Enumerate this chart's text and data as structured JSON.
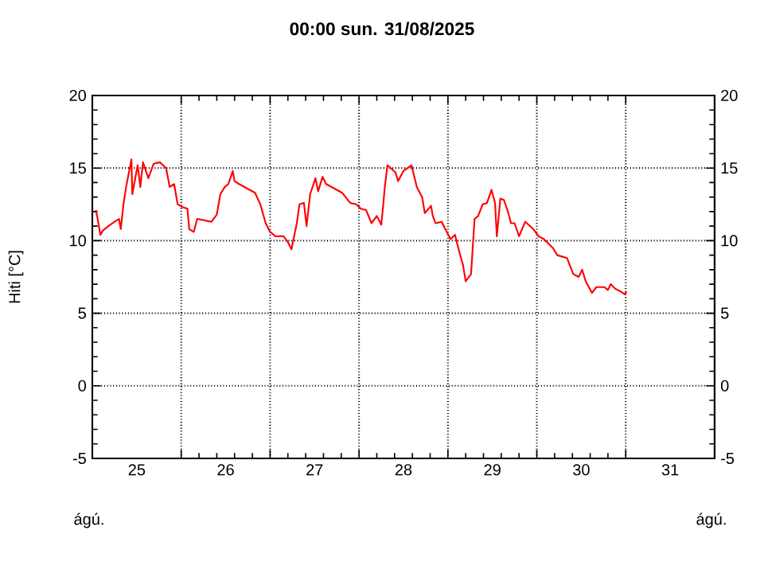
{
  "chart_data": {
    "type": "line",
    "title": "00:00   sun.  31/08/2025",
    "ylabel": "Hiti [°C]",
    "annotations": [
      "ágú.",
      "ágú."
    ],
    "xlim": [
      25,
      32
    ],
    "xticks": [
      {
        "value": 25.5,
        "label": "25"
      },
      {
        "value": 26,
        "label": null
      },
      {
        "value": 26.5,
        "label": "26"
      },
      {
        "value": 27,
        "label": null
      },
      {
        "value": 27.5,
        "label": "27"
      },
      {
        "value": 28,
        "label": null
      },
      {
        "value": 28.5,
        "label": "28"
      },
      {
        "value": 29,
        "label": null
      },
      {
        "value": 29.5,
        "label": "29"
      },
      {
        "value": 30,
        "label": null
      },
      {
        "value": 30.5,
        "label": "30"
      },
      {
        "value": 31,
        "label": null
      },
      {
        "value": 31.5,
        "label": "31"
      }
    ],
    "ylim": [
      -5,
      20
    ],
    "yticks": [
      -5,
      0,
      5,
      10,
      15,
      20
    ],
    "y2lim": [
      -5,
      20
    ],
    "y2ticks": [
      -5,
      0,
      5,
      10,
      15,
      20
    ],
    "grid": true,
    "line_style": "solid",
    "marker": "none",
    "series": [
      {
        "color": "#ff0000",
        "x": [
          25.04,
          25.06,
          25.09,
          25.12,
          25.18,
          25.25,
          25.3,
          25.32,
          25.35,
          25.38,
          25.44,
          25.45,
          25.51,
          25.54,
          25.57,
          25.63,
          25.69,
          25.76,
          25.83,
          25.87,
          25.92,
          25.96,
          26.02,
          26.07,
          26.09,
          26.14,
          26.18,
          26.26,
          26.34,
          26.4,
          26.44,
          26.49,
          26.53,
          26.58,
          26.6,
          26.65,
          26.74,
          26.83,
          26.89,
          26.95,
          27.0,
          27.06,
          27.15,
          27.2,
          27.24,
          27.3,
          27.33,
          27.38,
          27.41,
          27.45,
          27.51,
          27.54,
          27.59,
          27.63,
          27.72,
          27.81,
          27.9,
          27.97,
          28.02,
          28.08,
          28.14,
          28.2,
          28.25,
          28.27,
          28.29,
          28.32,
          28.41,
          28.44,
          28.5,
          28.59,
          28.65,
          28.71,
          28.74,
          28.81,
          28.83,
          28.86,
          28.93,
          28.97,
          29.03,
          29.08,
          29.12,
          29.17,
          29.2,
          29.26,
          29.3,
          29.34,
          29.39,
          29.44,
          29.49,
          29.53,
          29.55,
          29.59,
          29.63,
          29.67,
          29.71,
          29.75,
          29.8,
          29.87,
          29.96,
          30.02,
          30.08,
          30.18,
          30.23,
          30.34,
          30.41,
          30.47,
          30.51,
          30.55,
          30.62,
          30.67,
          30.76,
          30.8,
          30.83,
          30.88,
          30.94,
          30.99,
          31.01
        ],
        "values": [
          12.1,
          11.5,
          10.4,
          10.7,
          11.0,
          11.3,
          11.5,
          10.8,
          12.5,
          13.7,
          15.6,
          13.2,
          15.2,
          13.7,
          15.4,
          14.3,
          15.3,
          15.4,
          15.0,
          13.7,
          13.9,
          12.5,
          12.3,
          12.2,
          10.8,
          10.6,
          11.5,
          11.4,
          11.3,
          11.8,
          13.2,
          13.7,
          13.9,
          14.8,
          14.1,
          13.9,
          13.6,
          13.3,
          12.5,
          11.2,
          10.6,
          10.3,
          10.3,
          9.9,
          9.4,
          11.2,
          12.5,
          12.6,
          11.0,
          13.2,
          14.3,
          13.4,
          14.4,
          13.9,
          13.6,
          13.3,
          12.6,
          12.5,
          12.2,
          12.1,
          11.2,
          11.7,
          11.1,
          12.3,
          13.7,
          15.2,
          14.7,
          14.1,
          14.8,
          15.2,
          13.7,
          13.0,
          11.9,
          12.4,
          11.7,
          11.2,
          11.3,
          10.8,
          10.1,
          10.4,
          9.4,
          8.3,
          7.2,
          7.7,
          11.5,
          11.7,
          12.5,
          12.6,
          13.5,
          12.6,
          10.3,
          12.9,
          12.8,
          12.1,
          11.2,
          11.2,
          10.3,
          11.3,
          10.8,
          10.3,
          10.1,
          9.5,
          9.0,
          8.8,
          7.7,
          7.5,
          8.0,
          7.2,
          6.4,
          6.8,
          6.8,
          6.6,
          7.0,
          6.7,
          6.5,
          6.3,
          6.5
        ]
      }
    ]
  }
}
